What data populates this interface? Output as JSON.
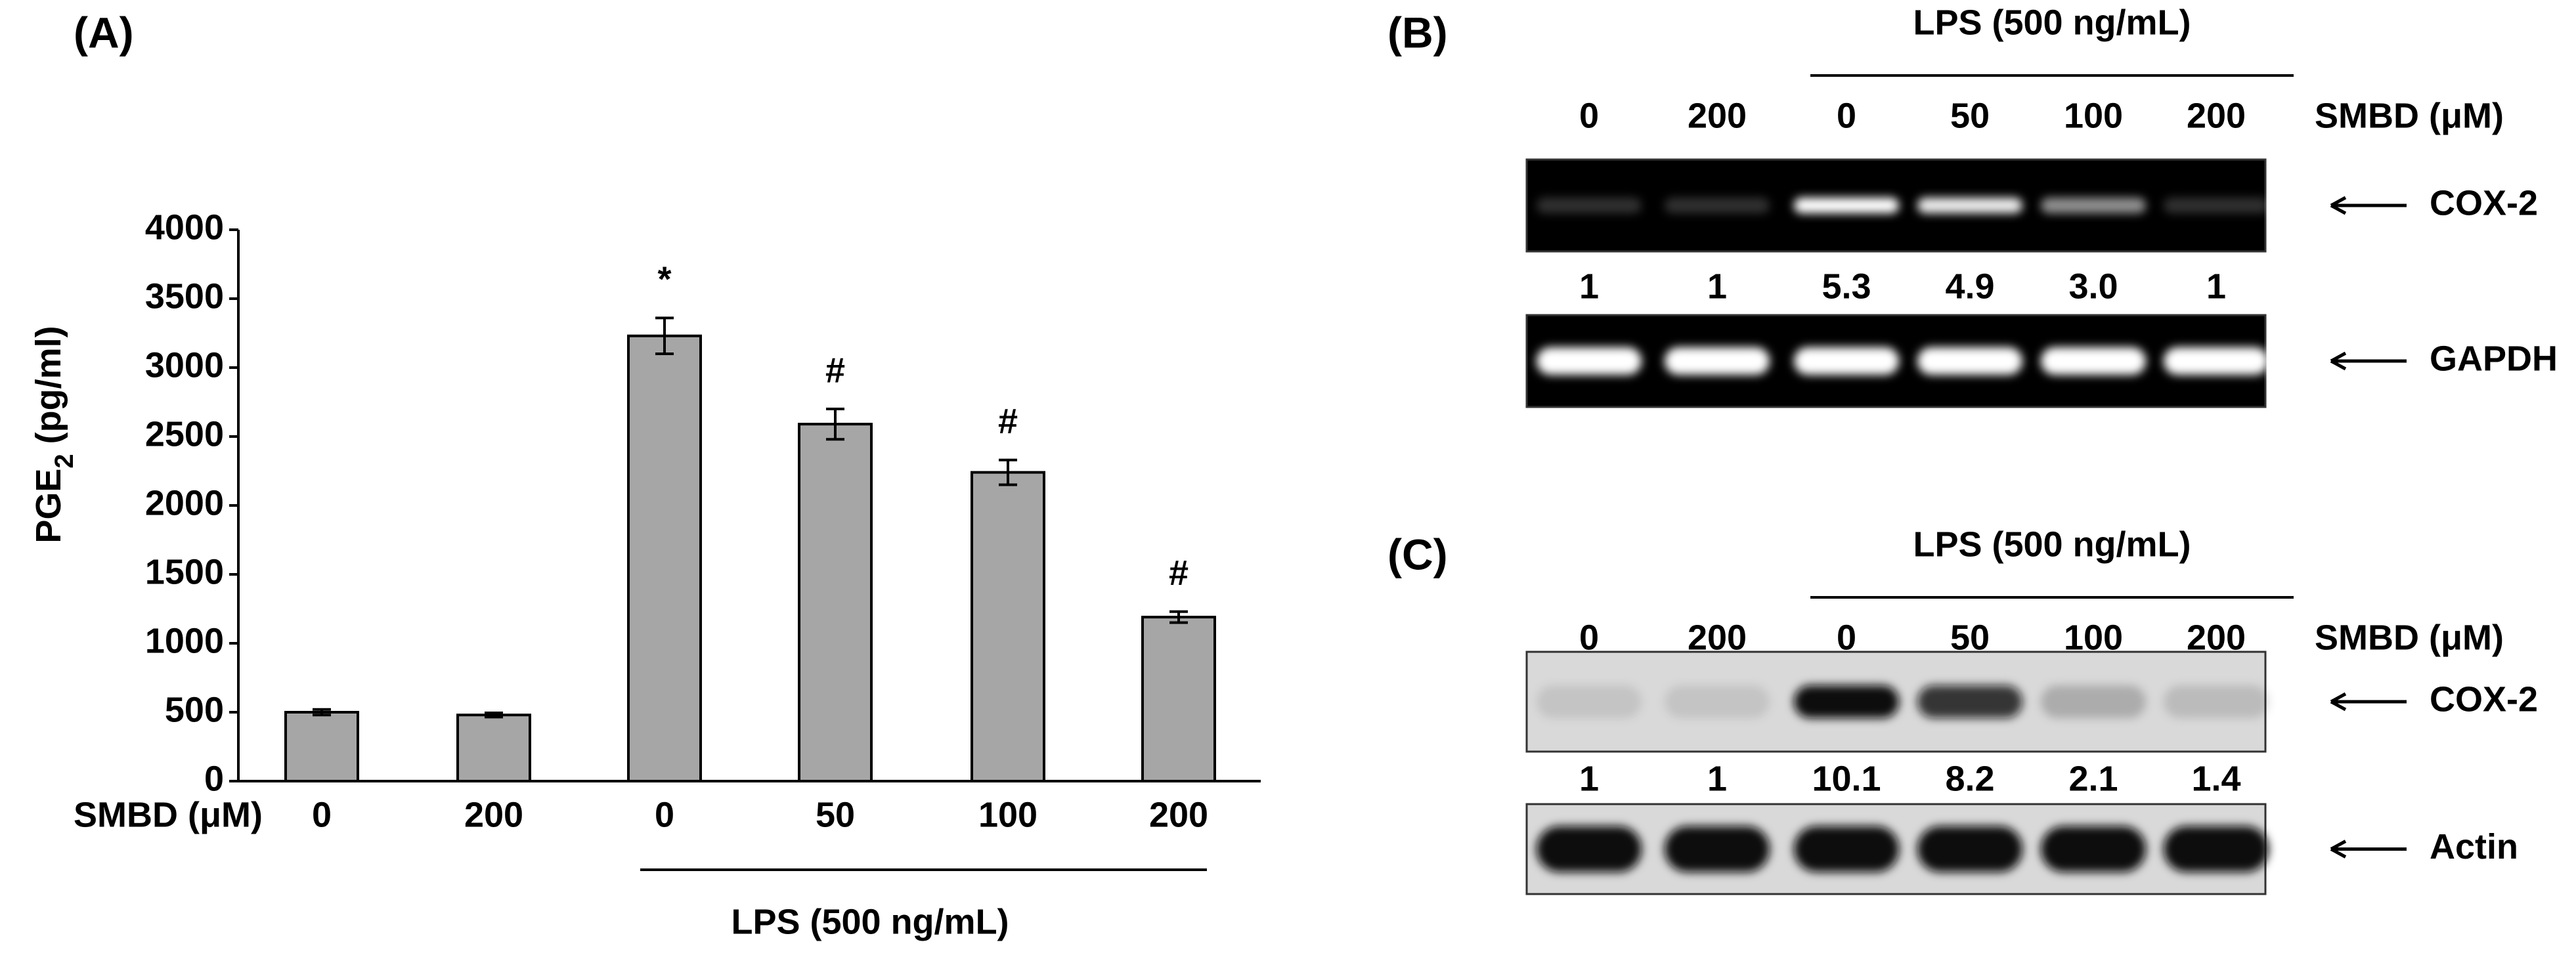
{
  "chart_data": [
    {
      "type": "bar",
      "panel_label": "(A)",
      "y_label": [
        "PGE",
        "2",
        " (pg/ml)"
      ],
      "x_label": "SMBD (μM)",
      "categories": [
        "0",
        "200",
        "0",
        "50",
        "100",
        "200"
      ],
      "values": [
        500,
        480,
        3230,
        2590,
        2240,
        1190
      ],
      "errors": [
        20,
        15,
        130,
        110,
        90,
        40
      ],
      "annotations": [
        null,
        null,
        "*",
        "#",
        "#",
        "#"
      ],
      "group_label": "LPS (500 ng/mL)",
      "color": "#a6a6a6",
      "ylim": [
        0,
        4000
      ],
      "yticks": [
        0,
        500,
        1000,
        1500,
        2000,
        2500,
        3000,
        3500,
        4000
      ]
    },
    {
      "type": "blot",
      "panel_label": "(B)",
      "group_label": "LPS (500 ng/mL)",
      "lane_title": "SMBD (μM)",
      "lanes": [
        "0",
        "200",
        "0",
        "50",
        "100",
        "200"
      ],
      "bands": [
        "COX-2",
        "GAPDH"
      ],
      "values": [
        1,
        1,
        5.3,
        4.9,
        3.0,
        1
      ],
      "value_labels": [
        "1",
        "1",
        "5.3",
        "4.9",
        "3.0",
        "1"
      ],
      "gel_color": "#000000",
      "band_color": "#ffffff"
    },
    {
      "type": "blot",
      "panel_label": "(C)",
      "group_label": "LPS (500 ng/mL)",
      "lane_title": "SMBD (μM)",
      "lanes": [
        "0",
        "200",
        "0",
        "50",
        "100",
        "200"
      ],
      "bands": [
        "COX-2",
        "Actin"
      ],
      "values": [
        1,
        1,
        10.1,
        8.2,
        2.1,
        1.4
      ],
      "value_labels": [
        "1",
        "1",
        "10.1",
        "8.2",
        "2.1",
        "1.4"
      ],
      "gel_color": "#d9d9d9",
      "band_color": "#111111"
    }
  ]
}
